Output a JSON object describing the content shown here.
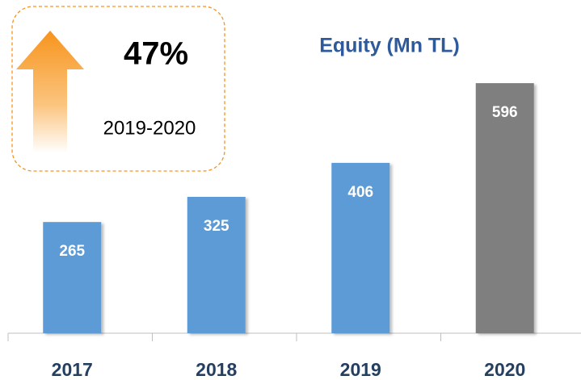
{
  "chart_data": {
    "type": "bar",
    "title": "Equity (Mn TL)",
    "categories": [
      "2017",
      "2018",
      "2019",
      "2020"
    ],
    "values": [
      265,
      325,
      406,
      596
    ],
    "colors": [
      "#5b9bd5",
      "#5b9bd5",
      "#5b9bd5",
      "#7f7f7f"
    ],
    "annotation": {
      "text": "47%",
      "period": "2019-2020"
    }
  }
}
